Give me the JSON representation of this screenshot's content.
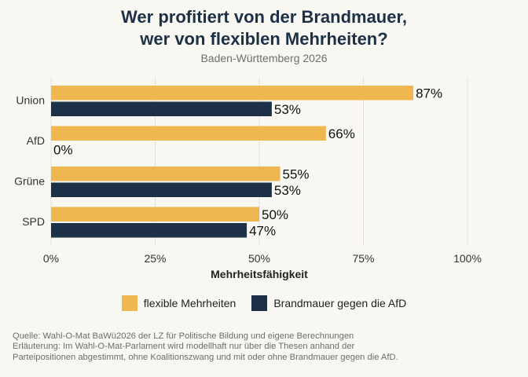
{
  "header": {
    "title_line1": "Wer profitiert von der Brandmauer,",
    "title_line2": "wer von flexiblen Mehrheiten?",
    "subtitle": "Baden-Württemberg 2026"
  },
  "chart_data": {
    "type": "bar",
    "orientation": "horizontal",
    "categories": [
      "Union",
      "AfD",
      "Grüne",
      "SPD"
    ],
    "series": [
      {
        "name": "flexible Mehrheiten",
        "values": [
          87,
          66,
          55,
          50
        ],
        "color": "#f0b64f"
      },
      {
        "name": "Brandmauer gegen die AfD",
        "values": [
          53,
          0,
          53,
          47
        ],
        "color": "#1c3147"
      }
    ],
    "xlabel": "Mehrheitsfähigkeit",
    "ylabel": "",
    "xlim": [
      0,
      100
    ],
    "xticks": [
      0,
      25,
      50,
      75,
      100
    ],
    "xtick_labels": [
      "0%",
      "25%",
      "50%",
      "75%",
      "100%"
    ],
    "value_labels": [
      [
        "87%",
        "66%",
        "55%",
        "50%"
      ],
      [
        "53%",
        "0%",
        "53%",
        "47%"
      ]
    ],
    "grid": true,
    "legend_position": "bottom"
  },
  "footer": {
    "line1": "Quelle: Wahl-O-Mat BaWü2026 der LZ für Politische Bildung und eigene Berechnungen",
    "line2": "Erläuterung: Im Wahl-O-Mat-Parlament wird modellhaft nur über die Thesen anhand der",
    "line3": "Parteipositionen abgestimmt, ohne Koalitionszwang und mit oder ohne Brandmauer gegen die AfD."
  }
}
